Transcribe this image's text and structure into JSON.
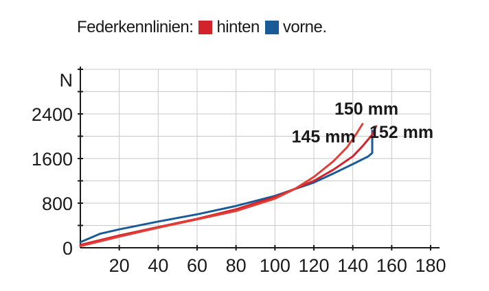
{
  "legend": {
    "title": "Federkennlinien:",
    "items": [
      {
        "label": "hinten",
        "color": "#d2232a"
      },
      {
        "label": "vorne.",
        "color": "#1a5a96"
      }
    ]
  },
  "chart_data": {
    "type": "line",
    "title": "",
    "xlabel": "",
    "ylabel": "N",
    "xlim": [
      0,
      180
    ],
    "ylim": [
      0,
      3200
    ],
    "xticks": [
      20,
      40,
      60,
      80,
      100,
      120,
      140,
      160,
      180
    ],
    "yticks": [
      0,
      800,
      1600,
      2400
    ],
    "grid": true,
    "series": [
      {
        "color": "#1a5a96",
        "x": [
          0,
          10,
          20,
          40,
          60,
          80,
          100,
          120,
          130,
          140,
          148,
          150,
          150
        ],
        "y": [
          100,
          250,
          330,
          470,
          600,
          750,
          930,
          1170,
          1330,
          1500,
          1640,
          1700,
          2100
        ]
      },
      {
        "color": "#d2232a",
        "x": [
          0,
          20,
          40,
          60,
          80,
          100,
          120,
          130,
          140,
          145,
          150,
          152
        ],
        "y": [
          50,
          220,
          370,
          520,
          690,
          910,
          1200,
          1400,
          1640,
          1820,
          2030,
          2180
        ]
      },
      {
        "color": "#e0403a",
        "x": [
          0,
          20,
          40,
          60,
          80,
          100,
          110,
          120,
          130,
          137,
          142,
          145
        ],
        "y": [
          30,
          200,
          360,
          510,
          660,
          880,
          1050,
          1270,
          1550,
          1800,
          2050,
          2220
        ]
      }
    ],
    "annotations": [
      {
        "text": "150 mm",
        "x": 147,
        "y": 2500
      },
      {
        "text": "145 mm",
        "x": 125,
        "y": 2000
      },
      {
        "text": "152 mm",
        "x": 165,
        "y": 2080
      }
    ]
  }
}
